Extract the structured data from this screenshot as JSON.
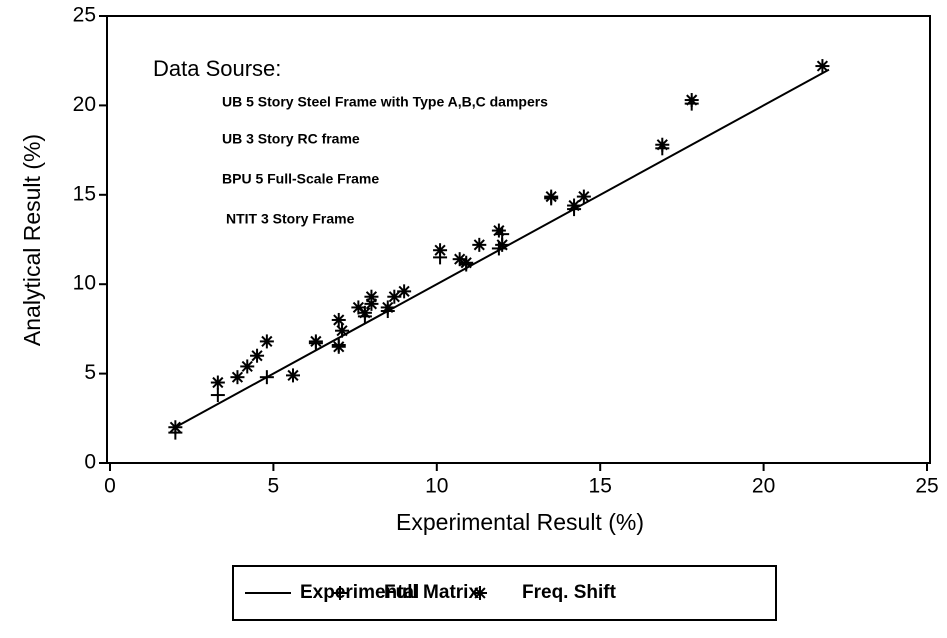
{
  "chart_data": {
    "type": "scatter",
    "xlabel": "Experimental Result (%)",
    "ylabel": "Analytical Result (%)",
    "xlim": [
      0,
      25
    ],
    "xticks": [
      0,
      5,
      10,
      15,
      20,
      25
    ],
    "ylim": [
      0,
      25
    ],
    "yticks": [
      0,
      5,
      10,
      15,
      20,
      25
    ],
    "grid": false,
    "annotations": [
      "Data Sourse:",
      "UB 5 Story Steel Frame  with Type A,B,C dampers",
      "UB 3 Story RC frame",
      "BPU 5 Full-Scale Frame",
      "NTIT 3 Story Frame"
    ],
    "legend": "bottom",
    "series": [
      {
        "name": "Experimental",
        "color": "#000000",
        "marker": "line",
        "x": [
          2,
          22
        ],
        "values": [
          2,
          22
        ]
      },
      {
        "name": "Full Matrix",
        "color": "#000000",
        "marker": "plus",
        "x": [
          2.0,
          3.3,
          4.8,
          6.3,
          7.0,
          7.8,
          8.5,
          10.1,
          10.9,
          11.9,
          12.0,
          13.5,
          14.2,
          16.9,
          17.8
        ],
        "values": [
          1.7,
          3.8,
          4.8,
          6.7,
          6.6,
          8.2,
          8.5,
          11.5,
          11.1,
          12.0,
          12.8,
          14.8,
          14.2,
          17.6,
          20.1
        ]
      },
      {
        "name": "Freq. Shift",
        "color": "#000000",
        "marker": "star",
        "x": [
          2.0,
          3.3,
          3.9,
          4.2,
          4.5,
          4.8,
          5.6,
          6.3,
          7.0,
          7.0,
          7.1,
          7.6,
          7.8,
          8.0,
          8.0,
          8.5,
          8.7,
          9.0,
          10.1,
          10.7,
          10.9,
          11.3,
          11.9,
          12.0,
          13.5,
          14.2,
          14.5,
          16.9,
          17.8,
          21.8
        ],
        "values": [
          2.0,
          4.5,
          4.8,
          5.4,
          6.0,
          6.8,
          4.9,
          6.8,
          6.5,
          8.0,
          7.4,
          8.7,
          8.4,
          9.3,
          8.9,
          8.7,
          9.3,
          9.6,
          11.9,
          11.4,
          11.2,
          12.2,
          13.0,
          12.2,
          14.9,
          14.4,
          14.9,
          17.8,
          20.3,
          22.2
        ]
      }
    ]
  }
}
